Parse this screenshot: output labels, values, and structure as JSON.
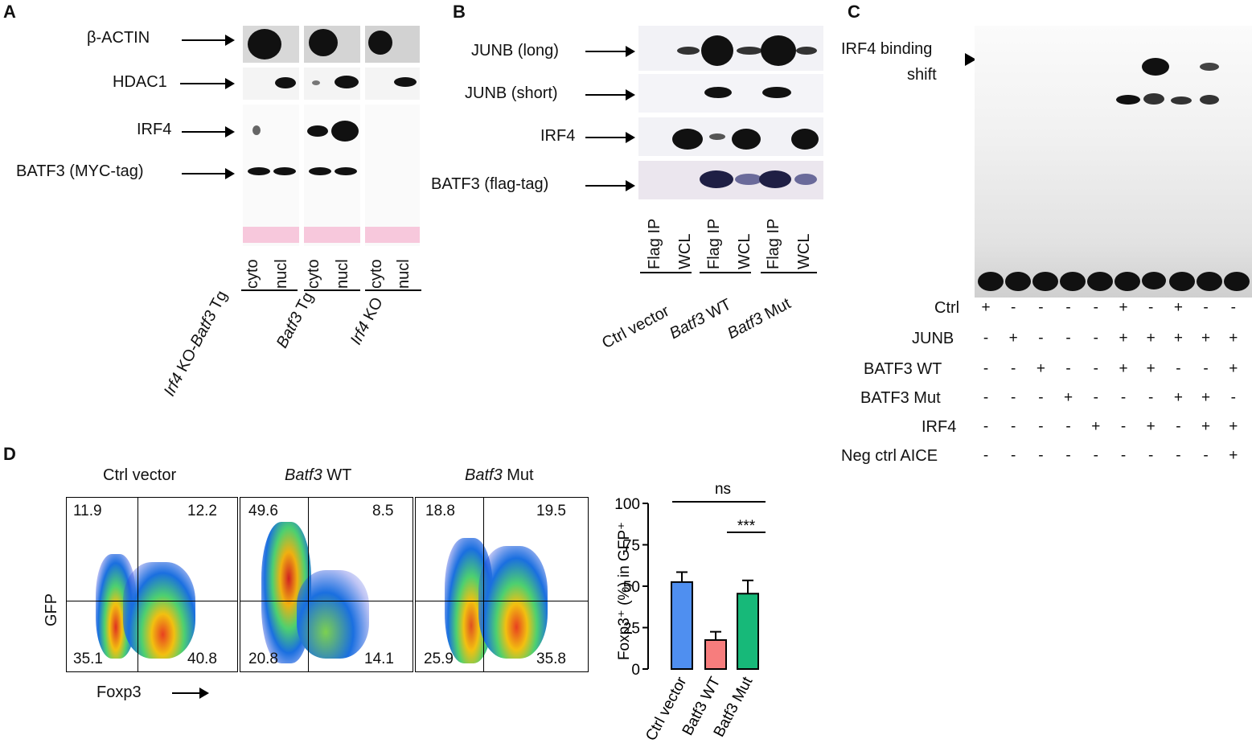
{
  "panelA": {
    "label": "A",
    "rows": [
      "β-ACTIN",
      "HDAC1",
      "IRF4",
      "BATF3 (MYC-tag)"
    ],
    "lanes": [
      "cyto",
      "nucl",
      "cyto",
      "nucl",
      "cyto",
      "nucl"
    ],
    "groups": [
      {
        "italic": "Irf4",
        "rest": " KO-",
        "italic2": "Batf3",
        "rest2": " Tg"
      },
      {
        "italic": "Batf3",
        "rest": " Tg"
      },
      {
        "italic": "Irf4",
        "rest": " KO"
      }
    ]
  },
  "panelB": {
    "label": "B",
    "rows": [
      "JUNB (long)",
      "JUNB (short)",
      "IRF4",
      "BATF3 (flag-tag)"
    ],
    "lanes": [
      "Flag IP",
      "WCL",
      "Flag IP",
      "WCL",
      "Flag IP",
      "WCL"
    ],
    "groups": [
      {
        "italic": "",
        "rest": "Ctrl vector"
      },
      {
        "italic": "Batf3",
        "rest": " WT"
      },
      {
        "italic": "Batf3",
        "rest": " Mut"
      }
    ]
  },
  "panelC": {
    "label": "C",
    "shift_label_1": "IRF4 binding",
    "shift_label_2": "shift",
    "conditions": [
      {
        "name": "Ctrl",
        "signs": [
          "+",
          "-",
          "-",
          "-",
          "-",
          "+",
          "-",
          "+",
          "-",
          "-"
        ]
      },
      {
        "name": "JUNB",
        "signs": [
          "-",
          "+",
          "-",
          "-",
          "-",
          "+",
          "+",
          "+",
          "+",
          "+"
        ]
      },
      {
        "name": "BATF3 WT",
        "signs": [
          "-",
          "-",
          "+",
          "-",
          "-",
          "+",
          "+",
          "-",
          "-",
          "+"
        ]
      },
      {
        "name": "BATF3 Mut",
        "signs": [
          "-",
          "-",
          "-",
          "+",
          "-",
          "-",
          "-",
          "+",
          "+",
          "-"
        ]
      },
      {
        "name": "IRF4",
        "signs": [
          "-",
          "-",
          "-",
          "-",
          "+",
          "-",
          "+",
          "-",
          "+",
          "+"
        ]
      },
      {
        "name": "Neg ctrl AICE",
        "signs": [
          "-",
          "-",
          "-",
          "-",
          "-",
          "-",
          "-",
          "-",
          "-",
          "+"
        ]
      }
    ]
  },
  "panelD": {
    "label": "D",
    "plots": [
      {
        "title": "Ctrl vector",
        "title_italic": "",
        "ul": "11.9",
        "ur": "12.2",
        "ll": "35.1",
        "lr": "40.8"
      },
      {
        "title": " WT",
        "title_italic": "Batf3",
        "ul": "49.6",
        "ur": "8.5",
        "ll": "20.8",
        "lr": "14.1"
      },
      {
        "title": " Mut",
        "title_italic": "Batf3",
        "ul": "18.8",
        "ur": "19.5",
        "ll": "25.9",
        "lr": "35.8"
      }
    ],
    "y_axis": "GFP",
    "x_axis": "Foxp3"
  },
  "chart_data": {
    "type": "bar",
    "categories": [
      "Ctrl vector",
      "Batf3 WT",
      "Batf3 Mut"
    ],
    "values": [
      52.5,
      17.5,
      45.5
    ],
    "errors": [
      6,
      5,
      8
    ],
    "colors": [
      "#4f8ff0",
      "#f77d7d",
      "#17b979"
    ],
    "ylabel": "Foxp3⁺ (%) in GFP⁺",
    "ylim": [
      0,
      100
    ],
    "yticks": [
      "0",
      "25",
      "50",
      "75",
      "100"
    ],
    "sig_top": "ns",
    "sig_bottom": "***"
  }
}
